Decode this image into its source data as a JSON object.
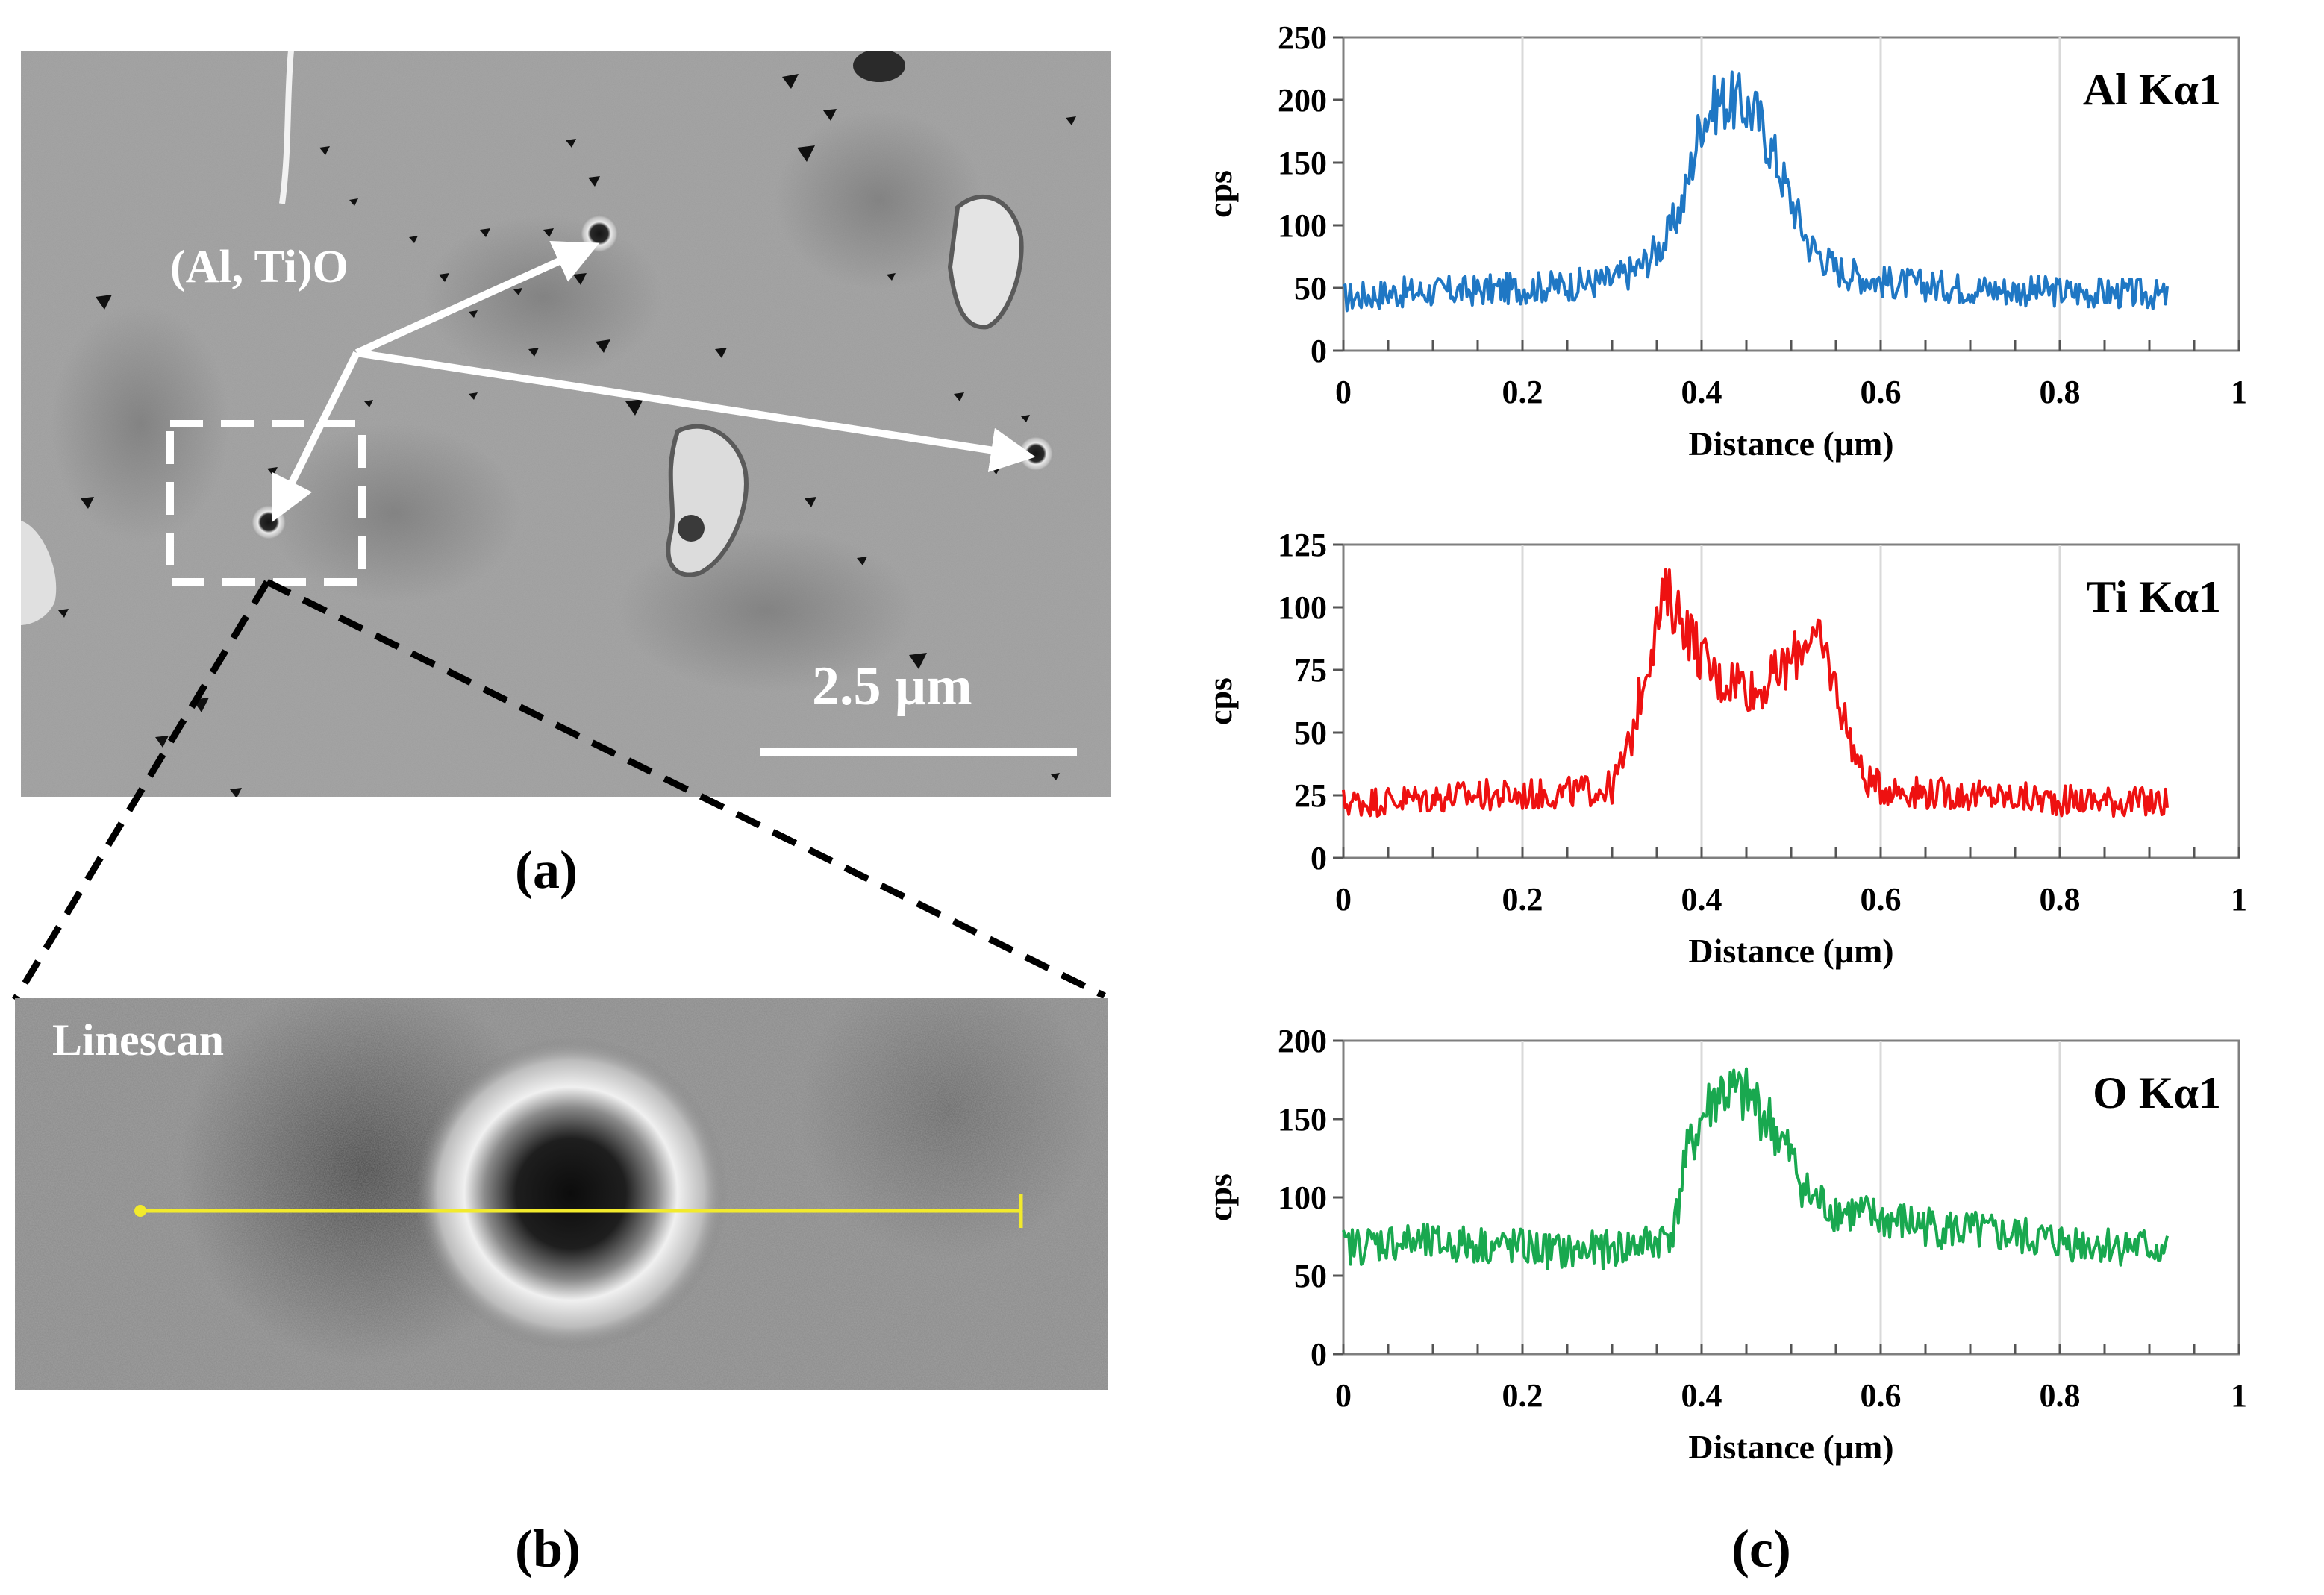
{
  "panels": {
    "a_label": "(a)",
    "b_label": "(b)",
    "c_label": "(c)"
  },
  "sem_image": {
    "annotation": "(Al, Ti)O",
    "scale_bar": "2.5 μm"
  },
  "linescan": {
    "label": "Linescan",
    "line_color": "#f2ea2c"
  },
  "chart_data": [
    {
      "type": "line",
      "title": "Al Kα1",
      "xlabel": "Distance (μm)",
      "ylabel": "cps",
      "xlim": [
        0,
        1
      ],
      "ylim": [
        0,
        250
      ],
      "xticks": [
        "0",
        "0.2",
        "0.4",
        "0.6",
        "0.8",
        "1"
      ],
      "yticks": [
        "0",
        "50",
        "100",
        "150",
        "200",
        "250"
      ],
      "color": "#1f77c4",
      "series": [
        {
          "name": "Al Kα1",
          "x": [
            0,
            0.05,
            0.1,
            0.15,
            0.2,
            0.25,
            0.3,
            0.33,
            0.36,
            0.38,
            0.4,
            0.42,
            0.44,
            0.46,
            0.48,
            0.5,
            0.52,
            0.55,
            0.6,
            0.65,
            0.7,
            0.75,
            0.8,
            0.85,
            0.9,
            0.92
          ],
          "y": [
            42,
            46,
            47,
            48,
            50,
            52,
            56,
            66,
            88,
            120,
            185,
            200,
            198,
            190,
            158,
            120,
            85,
            65,
            55,
            52,
            50,
            48,
            47,
            46,
            45,
            43
          ]
        }
      ]
    },
    {
      "type": "line",
      "title": "Ti Kα1",
      "xlabel": "Distance (μm)",
      "ylabel": "cps",
      "xlim": [
        0,
        1
      ],
      "ylim": [
        0,
        125
      ],
      "xticks": [
        "0",
        "0.2",
        "0.4",
        "0.6",
        "0.8",
        "1"
      ],
      "yticks": [
        "0",
        "25",
        "50",
        "75",
        "100",
        "125"
      ],
      "color": "#ee1111",
      "series": [
        {
          "name": "Ti Kα1",
          "x": [
            0,
            0.05,
            0.1,
            0.15,
            0.2,
            0.25,
            0.3,
            0.32,
            0.34,
            0.36,
            0.38,
            0.4,
            0.42,
            0.44,
            0.46,
            0.48,
            0.5,
            0.52,
            0.54,
            0.56,
            0.58,
            0.6,
            0.65,
            0.7,
            0.75,
            0.8,
            0.85,
            0.9,
            0.92
          ],
          "y": [
            22,
            23,
            24,
            25,
            25,
            26,
            28,
            45,
            80,
            105,
            95,
            80,
            70,
            72,
            66,
            72,
            78,
            90,
            80,
            55,
            32,
            28,
            26,
            25,
            24,
            23,
            23,
            22,
            22
          ]
        }
      ]
    },
    {
      "type": "line",
      "title": "O Kα1",
      "xlabel": "Distance (μm)",
      "ylabel": "cps",
      "xlim": [
        0,
        1
      ],
      "ylim": [
        0,
        200
      ],
      "xticks": [
        "0",
        "0.2",
        "0.4",
        "0.6",
        "0.8",
        "1"
      ],
      "yticks": [
        "0",
        "50",
        "100",
        "150",
        "200"
      ],
      "color": "#19a84f",
      "series": [
        {
          "name": "O Kα1",
          "x": [
            0,
            0.05,
            0.1,
            0.15,
            0.2,
            0.25,
            0.3,
            0.35,
            0.37,
            0.38,
            0.4,
            0.42,
            0.44,
            0.46,
            0.48,
            0.5,
            0.52,
            0.55,
            0.6,
            0.65,
            0.7,
            0.75,
            0.8,
            0.85,
            0.9,
            0.92
          ],
          "y": [
            68,
            72,
            70,
            70,
            68,
            65,
            67,
            72,
            80,
            120,
            150,
            168,
            165,
            160,
            145,
            125,
            100,
            92,
            86,
            82,
            78,
            75,
            72,
            70,
            68,
            67
          ]
        }
      ]
    }
  ]
}
